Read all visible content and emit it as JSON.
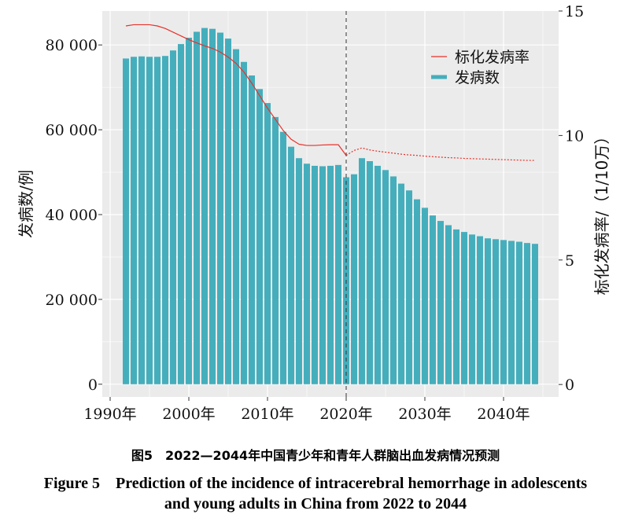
{
  "chart_data": {
    "type": "bar",
    "x": [
      1992,
      1993,
      1994,
      1995,
      1996,
      1997,
      1998,
      1999,
      2000,
      2001,
      2002,
      2003,
      2004,
      2005,
      2006,
      2007,
      2008,
      2009,
      2010,
      2011,
      2012,
      2013,
      2014,
      2015,
      2016,
      2017,
      2018,
      2019,
      2020,
      2021,
      2022,
      2023,
      2024,
      2025,
      2026,
      2027,
      2028,
      2029,
      2030,
      2031,
      2032,
      2033,
      2034,
      2035,
      2036,
      2037,
      2038,
      2039,
      2040,
      2041,
      2042,
      2043,
      2044
    ],
    "series": [
      {
        "name": "发病数",
        "kind": "bar",
        "axis": "left",
        "color": "#45AEBC",
        "values": [
          76800,
          77200,
          77300,
          77200,
          77200,
          77400,
          78700,
          80200,
          81700,
          83100,
          84000,
          83800,
          82900,
          81500,
          79000,
          76000,
          72800,
          69600,
          66300,
          63000,
          59500,
          56000,
          53300,
          52000,
          51500,
          51400,
          51500,
          51700,
          48800,
          49500,
          53300,
          52600,
          51500,
          50500,
          49000,
          47300,
          45700,
          43600,
          41600,
          39800,
          38500,
          37500,
          36500,
          35900,
          35300,
          34900,
          34400,
          34200,
          34000,
          33800,
          33600,
          33300,
          33100
        ]
      },
      {
        "name": "标化发病率",
        "kind": "line",
        "axis": "right",
        "color": "#E8312A",
        "values": [
          14.4,
          14.45,
          14.45,
          14.45,
          14.4,
          14.3,
          14.15,
          14.0,
          13.85,
          13.72,
          13.6,
          13.5,
          13.35,
          13.15,
          12.9,
          12.55,
          12.1,
          11.6,
          11.1,
          10.65,
          10.2,
          9.85,
          9.65,
          9.6,
          9.6,
          9.62,
          9.63,
          9.63,
          9.2,
          9.4,
          9.5,
          9.42,
          9.37,
          9.33,
          9.29,
          9.25,
          9.22,
          9.2,
          9.17,
          9.15,
          9.13,
          9.11,
          9.1,
          9.08,
          9.07,
          9.06,
          9.05,
          9.04,
          9.03,
          9.02,
          9.01,
          9.0,
          9.0
        ]
      }
    ],
    "xticks": [
      1990,
      2000,
      2010,
      2020,
      2030,
      2040
    ],
    "xtick_labels": [
      "1990年",
      "2000年",
      "2010年",
      "2020年",
      "2030年",
      "2040年"
    ],
    "yticks": [
      0,
      20000,
      40000,
      60000,
      80000
    ],
    "ytick_labels": [
      "0",
      "20 000",
      "40 000",
      "60 000",
      "80 000"
    ],
    "y2ticks": [
      0,
      5,
      10,
      15
    ],
    "y2tick_labels": [
      "0",
      "5",
      "10",
      "15"
    ],
    "xlim": [
      1989,
      2047
    ],
    "ylim": [
      -3000,
      88000
    ],
    "y2lim": [
      -0.5,
      15.0
    ],
    "ylabel": "发病数/例",
    "y2label": "标化发病率/（1/10万）",
    "vline_x": 2020,
    "projection_start": 2020,
    "legend_position": "top-right",
    "grid": true,
    "background": "#EBEBEB"
  },
  "caption": {
    "cn": "图5　2022—2044年中国青少年和青年人群脑出血发病情况预测",
    "en_line1": "Figure 5　Prediction of the incidence of intracerebral hemorrhage in adolescents",
    "en_line2": "and young adults in China from 2022 to 2044"
  }
}
